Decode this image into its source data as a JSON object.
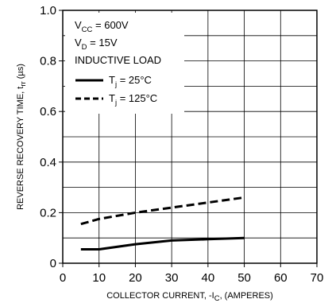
{
  "chart_data": {
    "type": "line",
    "xlabel_main": "COLLECTOR CURRENT, -I",
    "xlabel_sub": "C",
    "xlabel_tail": ", (AMPERES)",
    "ylabel_main": "REVERSE RECOVERY TIME, t",
    "ylabel_sub": "rr",
    "ylabel_tail": " (µs)",
    "xlim": [
      0,
      70
    ],
    "ylim": [
      0,
      1.0
    ],
    "x_ticks": [
      0,
      10,
      20,
      30,
      40,
      50,
      60,
      70
    ],
    "x_tick_labels": [
      "0",
      "10",
      "20",
      "30",
      "40",
      "50",
      "60",
      "70"
    ],
    "y_ticks": [
      0,
      0.2,
      0.4,
      0.6,
      0.8,
      1.0
    ],
    "y_tick_labels": [
      "0",
      "0.2",
      "0.4",
      "0.6",
      "0.8",
      "1.0"
    ],
    "grid": true,
    "conditions": [
      {
        "main": "V",
        "sub": "CC",
        "tail": " = 600V"
      },
      {
        "main": "V",
        "sub": "D",
        "tail": " = 15V"
      },
      {
        "main": "INDUCTIVE LOAD",
        "sub": "",
        "tail": ""
      }
    ],
    "series": [
      {
        "name_main": "T",
        "name_sub": "j",
        "name_tail": " = 25°C",
        "style": "solid",
        "color": "#000000",
        "x": [
          5,
          10,
          20,
          30,
          40,
          50
        ],
        "y": [
          0.055,
          0.055,
          0.075,
          0.09,
          0.095,
          0.1
        ]
      },
      {
        "name_main": "T",
        "name_sub": "j",
        "name_tail": " = 125°C",
        "style": "dashed",
        "color": "#000000",
        "x": [
          5,
          10,
          20,
          30,
          40,
          50
        ],
        "y": [
          0.155,
          0.175,
          0.2,
          0.22,
          0.24,
          0.26
        ]
      }
    ]
  }
}
